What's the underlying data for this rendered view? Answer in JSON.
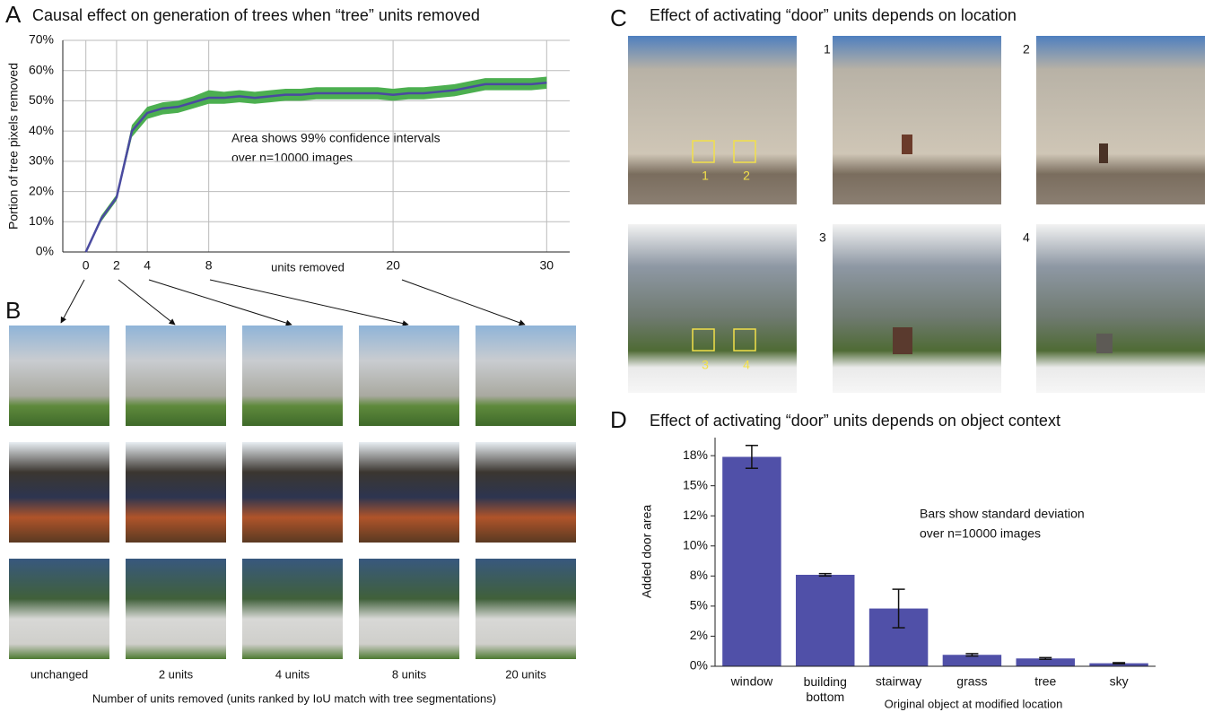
{
  "panel_labels": [
    "A",
    "B",
    "C",
    "D"
  ],
  "chart_data": [
    {
      "type": "line",
      "title": "Causal effect on generation of trees when “tree” units removed",
      "xlabel": "units removed",
      "ylabel": "Portion of tree pixels removed",
      "annotation": [
        "Area shows 99% confidence intervals",
        "over n=10000 images"
      ],
      "x": [
        0,
        1,
        2,
        3,
        4,
        5,
        6,
        7,
        8,
        9,
        10,
        11,
        12,
        13,
        14,
        15,
        16,
        17,
        18,
        19,
        20,
        21,
        22,
        23,
        24,
        25,
        26,
        27,
        28,
        29,
        30
      ],
      "series": [
        {
          "color": "#4a4aa0",
          "band_color": "#4caf50",
          "values": [
            0,
            11,
            18,
            40,
            46,
            47.5,
            48,
            49.5,
            51,
            51,
            51.5,
            51,
            51.5,
            52,
            52,
            52.5,
            52.5,
            52.5,
            52.5,
            52.5,
            52,
            52.5,
            52.5,
            53,
            53.5,
            54.5,
            55.5,
            55.5,
            55.5,
            55.5,
            56
          ],
          "lower": [
            0,
            10,
            17,
            38,
            44,
            45.5,
            46,
            47.5,
            49,
            49,
            49.5,
            49,
            49.5,
            50,
            50,
            50.5,
            50.5,
            50.5,
            50.5,
            50.5,
            50,
            50.5,
            50.5,
            51,
            51.5,
            52.5,
            53.5,
            53.5,
            53.5,
            53.5,
            54
          ],
          "upper": [
            0,
            12,
            19,
            42,
            48,
            49.5,
            50,
            51.5,
            53.5,
            53,
            53.5,
            53,
            53.5,
            54,
            54,
            54.5,
            54.5,
            54.5,
            54.5,
            54.5,
            54,
            54.5,
            54.5,
            55,
            55.5,
            56.5,
            57.5,
            57.5,
            57.5,
            57.5,
            58
          ]
        }
      ],
      "xlim": [
        -1.5,
        31.5
      ],
      "xticks": [
        0,
        2,
        4,
        8,
        20,
        30
      ],
      "ylim": [
        0,
        70
      ],
      "yticks": [
        {
          "value": 0,
          "label": "0%"
        },
        {
          "value": 10,
          "label": "10%"
        },
        {
          "value": 20,
          "label": "20%"
        },
        {
          "value": 30,
          "label": "30%"
        },
        {
          "value": 40,
          "label": "40%"
        },
        {
          "value": 50,
          "label": "50%"
        },
        {
          "value": 60,
          "label": "60%"
        },
        {
          "value": 70,
          "label": "70%"
        }
      ],
      "grid": true
    },
    {
      "type": "bar",
      "title": "Effect of activating “door” units depends on object context",
      "xlabel": "Original object at modified location",
      "ylabel": "Added door area",
      "annotation": [
        "Bars show standard deviation",
        "over n=10000 images"
      ],
      "categories": [
        "window",
        "building bottom",
        "stairway",
        "grass",
        "tree",
        "sky"
      ],
      "values": [
        17.4,
        7.6,
        4.8,
        0.95,
        0.65,
        0.25
      ],
      "errors": [
        0.95,
        0.1,
        1.6,
        0.1,
        0.07,
        0.05
      ],
      "color": "#5050a8",
      "ylim": [
        0,
        19
      ],
      "yticks": [
        {
          "value": 0,
          "label": "0%"
        },
        {
          "value": 2.5,
          "label": "2%"
        },
        {
          "value": 5,
          "label": "5%"
        },
        {
          "value": 7.5,
          "label": "8%"
        },
        {
          "value": 10,
          "label": "10%"
        },
        {
          "value": 12.5,
          "label": "12%"
        },
        {
          "value": 15,
          "label": "15%"
        },
        {
          "value": 17.5,
          "label": "18%"
        }
      ]
    }
  ],
  "panel_b": {
    "column_labels": [
      "unchanged",
      "2 units",
      "4 units",
      "8 units",
      "20 units"
    ],
    "caption": "Number of units removed (units ranked by IoU match with tree segmentations)"
  },
  "panel_c": {
    "title": "Effect of activating “door” units depends on location",
    "image_labels": [
      "1",
      "2",
      "3",
      "4"
    ]
  }
}
